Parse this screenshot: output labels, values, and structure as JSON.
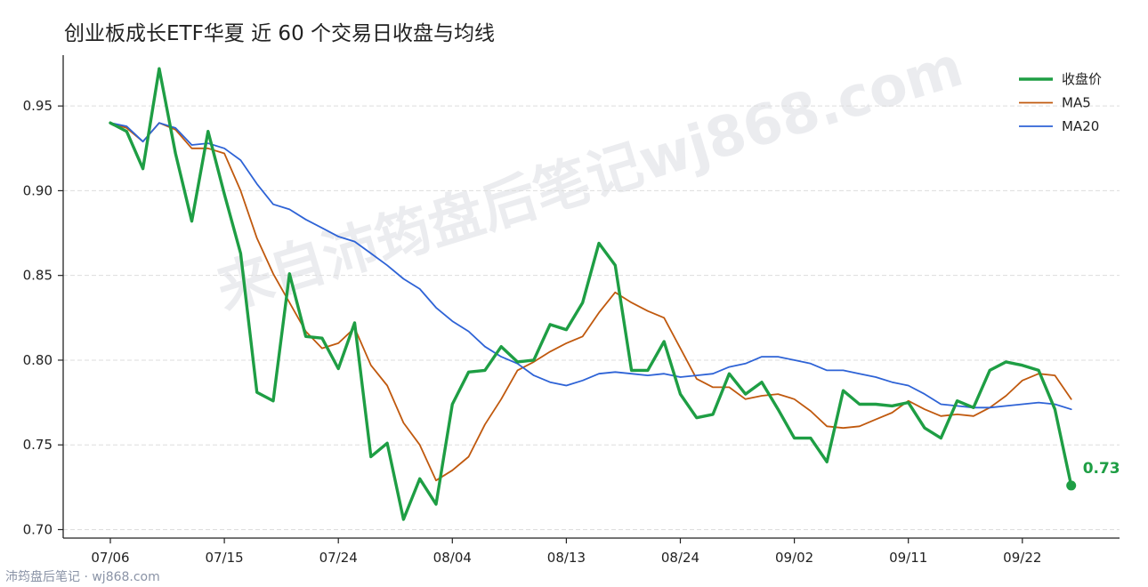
{
  "title": "创业板成长ETF华夏 近 60 个交易日收盘与均线",
  "footer": "沛筠盘后笔记 · wj868.com",
  "watermark": "来自沛筠盘后笔记wj868.com",
  "colors": {
    "close": "#1e9e44",
    "ma5": "#c0590e",
    "ma20": "#2e63d6",
    "axis": "#222222",
    "grid": "#dddddd"
  },
  "chart_data": {
    "type": "line",
    "title": "创业板成长ETF华夏 近 60 个交易日收盘与均线",
    "x_ticks": [
      "07/06",
      "07/15",
      "07/24",
      "08/04",
      "08/13",
      "08/24",
      "09/02",
      "09/11",
      "09/22"
    ],
    "y_ticks": [
      "0.70",
      "0.75",
      "0.80",
      "0.85",
      "0.90",
      "0.95"
    ],
    "ylim": [
      0.695,
      0.98
    ],
    "grid": "horizontal dashed",
    "legend_position": "top-right",
    "last_close_label": "0.73",
    "series": [
      {
        "name": "收盘价",
        "values": [
          0.94,
          0.935,
          0.913,
          0.972,
          0.922,
          0.882,
          0.935,
          0.898,
          0.863,
          0.781,
          0.776,
          0.851,
          0.814,
          0.813,
          0.795,
          0.822,
          0.743,
          0.751,
          0.706,
          0.73,
          0.715,
          0.774,
          0.793,
          0.794,
          0.808,
          0.799,
          0.8,
          0.821,
          0.818,
          0.834,
          0.869,
          0.856,
          0.794,
          0.794,
          0.811,
          0.78,
          0.766,
          0.768,
          0.792,
          0.78,
          0.787,
          0.771,
          0.754,
          0.754,
          0.74,
          0.782,
          0.774,
          0.774,
          0.773,
          0.775,
          0.76,
          0.754,
          0.776,
          0.772,
          0.794,
          0.799,
          0.797,
          0.794,
          0.771,
          0.726
        ]
      },
      {
        "name": "MA5",
        "values": [
          0.94,
          0.937,
          0.929,
          0.94,
          0.936,
          0.925,
          0.925,
          0.922,
          0.9,
          0.872,
          0.851,
          0.834,
          0.817,
          0.807,
          0.81,
          0.819,
          0.797,
          0.785,
          0.763,
          0.75,
          0.729,
          0.735,
          0.743,
          0.762,
          0.777,
          0.794,
          0.799,
          0.805,
          0.81,
          0.814,
          0.828,
          0.84,
          0.834,
          0.829,
          0.825,
          0.807,
          0.789,
          0.784,
          0.784,
          0.777,
          0.779,
          0.78,
          0.777,
          0.77,
          0.761,
          0.76,
          0.761,
          0.765,
          0.769,
          0.776,
          0.771,
          0.767,
          0.768,
          0.767,
          0.772,
          0.779,
          0.788,
          0.792,
          0.791,
          0.777
        ]
      },
      {
        "name": "MA20",
        "values": [
          0.94,
          0.938,
          0.929,
          0.94,
          0.937,
          0.927,
          0.928,
          0.925,
          0.918,
          0.904,
          0.892,
          0.889,
          0.883,
          0.878,
          0.873,
          0.87,
          0.863,
          0.856,
          0.848,
          0.842,
          0.831,
          0.823,
          0.817,
          0.808,
          0.802,
          0.798,
          0.791,
          0.787,
          0.785,
          0.788,
          0.792,
          0.793,
          0.792,
          0.791,
          0.792,
          0.79,
          0.791,
          0.792,
          0.796,
          0.798,
          0.802,
          0.802,
          0.8,
          0.798,
          0.794,
          0.794,
          0.792,
          0.79,
          0.787,
          0.785,
          0.78,
          0.774,
          0.773,
          0.772,
          0.772,
          0.773,
          0.774,
          0.775,
          0.774,
          0.771
        ]
      }
    ]
  }
}
